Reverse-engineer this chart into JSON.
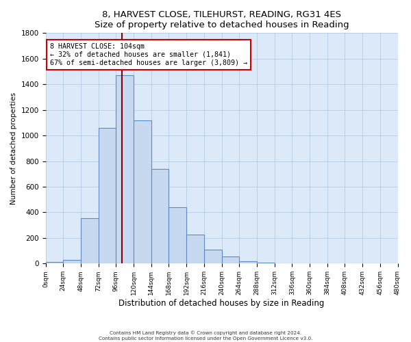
{
  "title": "8, HARVEST CLOSE, TILEHURST, READING, RG31 4ES",
  "subtitle": "Size of property relative to detached houses in Reading",
  "xlabel": "Distribution of detached houses by size in Reading",
  "ylabel": "Number of detached properties",
  "bar_edges": [
    0,
    24,
    48,
    72,
    96,
    120,
    144,
    168,
    192,
    216,
    240,
    264,
    288,
    312,
    336,
    360,
    384,
    408,
    432,
    456,
    480
  ],
  "bar_heights": [
    15,
    30,
    355,
    1060,
    1470,
    1120,
    740,
    440,
    225,
    110,
    55,
    20,
    5,
    2,
    1,
    0,
    0,
    0,
    0,
    0
  ],
  "bar_color": "#c6d9f1",
  "bar_edge_color": "#5b8ac5",
  "property_sqm": 104,
  "vline_color": "#8b0000",
  "annotation_text": "8 HARVEST CLOSE: 104sqm\n← 32% of detached houses are smaller (1,841)\n67% of semi-detached houses are larger (3,809) →",
  "annotation_box_color": "#ffffff",
  "annotation_box_edge": "#cc0000",
  "ylim": [
    0,
    1800
  ],
  "yticks": [
    0,
    200,
    400,
    600,
    800,
    1000,
    1200,
    1400,
    1600,
    1800
  ],
  "tick_labels": [
    "0sqm",
    "24sqm",
    "48sqm",
    "72sqm",
    "96sqm",
    "120sqm",
    "144sqm",
    "168sqm",
    "192sqm",
    "216sqm",
    "240sqm",
    "264sqm",
    "288sqm",
    "312sqm",
    "336sqm",
    "360sqm",
    "384sqm",
    "408sqm",
    "432sqm",
    "456sqm",
    "480sqm"
  ],
  "footer_line1": "Contains HM Land Registry data © Crown copyright and database right 2024.",
  "footer_line2": "Contains public sector information licensed under the Open Government Licence v3.0.",
  "bg_color": "#ffffff",
  "plot_bg_color": "#dce9f8",
  "grid_color": "#b0c4de"
}
